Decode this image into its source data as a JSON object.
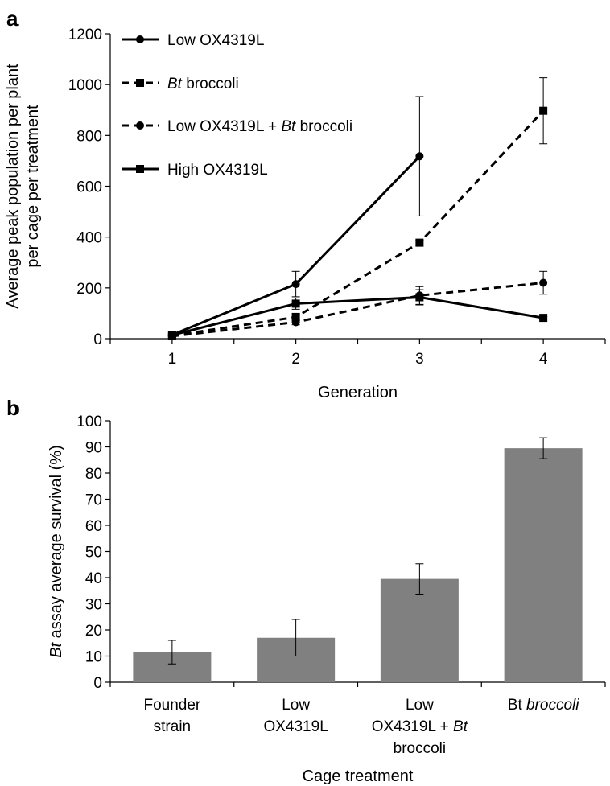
{
  "panels": {
    "a": {
      "letter": "a"
    },
    "b": {
      "letter": "b"
    }
  },
  "chart_data": [
    {
      "panel": "a",
      "type": "line",
      "x": [
        1,
        2,
        3,
        4
      ],
      "xlabel": "Generation",
      "ylabel_lines": [
        "Average peak population per plant",
        "per cage per treatment"
      ],
      "ylim": [
        0,
        1200
      ],
      "yticks": [
        0,
        200,
        400,
        600,
        800,
        1000,
        1200
      ],
      "grid": false,
      "legend_position": "top-left",
      "series": [
        {
          "name": "Low OX4319L",
          "legend_parts": [
            {
              "text": "Low OX4319L",
              "italic": false
            }
          ],
          "line_style": "solid",
          "marker": "circle",
          "values": [
            15,
            215,
            718,
            null
          ],
          "errors": [
            4,
            50,
            235,
            null
          ]
        },
        {
          "name": "Bt broccoli",
          "legend_parts": [
            {
              "text": "Bt",
              "italic": true
            },
            {
              "text": " broccoli",
              "italic": false
            }
          ],
          "line_style": "dashed",
          "marker": "square",
          "values": [
            12,
            85,
            378,
            897
          ],
          "errors": [
            3,
            15,
            10,
            130
          ]
        },
        {
          "name": "Low OX4319L + Bt broccoli",
          "legend_parts": [
            {
              "text": "Low OX4319L + ",
              "italic": false
            },
            {
              "text": "Bt",
              "italic": true
            },
            {
              "text": " broccoli",
              "italic": false
            }
          ],
          "line_style": "dashed",
          "marker": "circle",
          "values": [
            10,
            65,
            170,
            220
          ],
          "errors": [
            3,
            10,
            35,
            45
          ]
        },
        {
          "name": "High OX4319L",
          "legend_parts": [
            {
              "text": "High OX4319L",
              "italic": false
            }
          ],
          "line_style": "solid",
          "marker": "square",
          "values": [
            14,
            138,
            163,
            82
          ],
          "errors": [
            3,
            22,
            30,
            5
          ]
        }
      ]
    },
    {
      "panel": "b",
      "type": "bar",
      "categories": [
        [
          {
            "text": "Founder",
            "italic": false
          },
          {
            "text": "strain",
            "italic": false
          }
        ],
        [
          {
            "text": "Low",
            "italic": false
          },
          {
            "text": "OX4319L",
            "italic": false
          }
        ],
        [
          {
            "text": "Low",
            "italic": false
          },
          {
            "text": "OX4319L + |Bt",
            "italic": false
          },
          {
            "text": "broccoli",
            "italic": false
          }
        ],
        [
          {
            "text": "Bt| broccoli",
            "italic": false
          }
        ]
      ],
      "category_names": [
        "Founder strain",
        "Low OX4319L",
        "Low OX4319L + Bt broccoli",
        "Bt broccoli"
      ],
      "values": [
        11.5,
        17,
        39.5,
        89.5
      ],
      "errors": [
        4.5,
        7,
        5.8,
        4
      ],
      "xlabel": "Cage treatment",
      "ylabel_parts": [
        {
          "text": "Bt",
          "italic": true
        },
        {
          "text": " assay average survival (%)",
          "italic": false
        }
      ],
      "ylim": [
        0,
        100
      ],
      "yticks": [
        0,
        10,
        20,
        30,
        40,
        50,
        60,
        70,
        80,
        90,
        100
      ],
      "bar_color": "#808080",
      "grid": false
    }
  ]
}
